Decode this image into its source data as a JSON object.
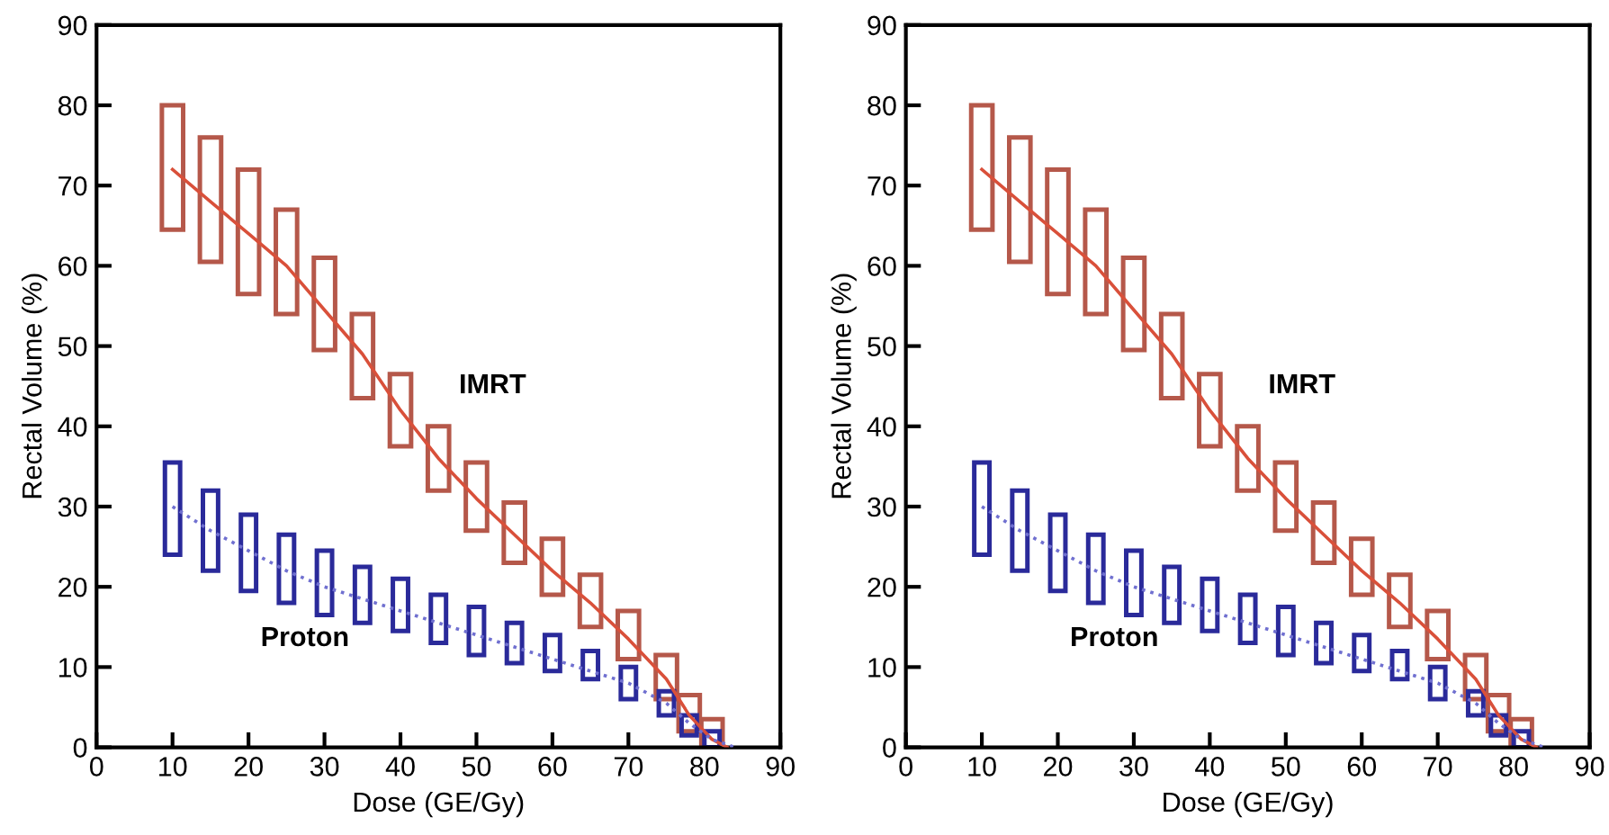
{
  "chart_data": [
    {
      "type": "bar",
      "xlabel": "Dose (GE/Gy)",
      "ylabel": "Rectal Volume (%)",
      "xlim": [
        0,
        90
      ],
      "ylim": [
        0,
        90
      ],
      "xticks": [
        0,
        10,
        20,
        30,
        40,
        50,
        60,
        70,
        80,
        90
      ],
      "yticks": [
        0,
        10,
        20,
        30,
        40,
        50,
        60,
        70,
        80,
        90
      ],
      "grid": false,
      "legend": false,
      "annotations": [
        "IMRT",
        "Proton"
      ],
      "series": [
        {
          "color": "#b5584a",
          "x": [
            10,
            15,
            20,
            25,
            30,
            35,
            40,
            45,
            50,
            55,
            60,
            65,
            70,
            75,
            78,
            81
          ],
          "base": [
            64.5,
            60.5,
            56.5,
            54,
            49.5,
            43.5,
            37.5,
            32,
            27,
            23,
            19,
            15,
            11,
            6,
            2,
            0
          ],
          "values": [
            15.5,
            15.5,
            15.5,
            13,
            11.5,
            10.5,
            9,
            8,
            8.5,
            7.5,
            7,
            6.5,
            6,
            5.5,
            4.5,
            3.5
          ]
        },
        {
          "color": "#2a2a9a",
          "x": [
            10,
            15,
            20,
            25,
            30,
            35,
            40,
            45,
            50,
            55,
            60,
            65,
            70,
            75,
            78,
            81
          ],
          "base": [
            24,
            22,
            19.5,
            18,
            16.5,
            15.5,
            14.5,
            13,
            11.5,
            10.5,
            9.5,
            8.5,
            6,
            4,
            1.5,
            0
          ],
          "values": [
            11.5,
            10,
            9.5,
            8.5,
            8,
            7,
            6.5,
            6,
            6,
            5,
            4.5,
            3.5,
            4,
            3,
            2.5,
            2
          ]
        },
        {
          "type": "line",
          "color": "#d9503a",
          "line_style": "solid",
          "x": [
            10,
            15,
            20,
            25,
            30,
            35,
            40,
            45,
            50,
            55,
            60,
            65,
            70,
            75,
            78,
            81,
            83
          ],
          "values": [
            72,
            68,
            64,
            60,
            54.5,
            49,
            42,
            36,
            31,
            26.5,
            22,
            18,
            13.5,
            8.5,
            4,
            1,
            0
          ]
        },
        {
          "type": "line",
          "color": "#7070d0",
          "line_style": "dotted",
          "x": [
            10,
            15,
            20,
            25,
            30,
            35,
            40,
            45,
            50,
            55,
            60,
            65,
            70,
            75,
            78,
            81,
            84
          ],
          "values": [
            30,
            27,
            24.5,
            22,
            20,
            18.5,
            17,
            15.5,
            14,
            12.5,
            11,
            9.5,
            8,
            5.5,
            3,
            1,
            0
          ]
        }
      ]
    },
    {
      "type": "bar",
      "xlabel": "Dose (GE/Gy)",
      "ylabel": "Rectal Volume (%)",
      "xlim": [
        0,
        90
      ],
      "ylim": [
        0,
        90
      ],
      "xticks": [
        0,
        10,
        20,
        30,
        40,
        50,
        60,
        70,
        80,
        90
      ],
      "yticks": [
        0,
        10,
        20,
        30,
        40,
        50,
        60,
        70,
        80,
        90
      ],
      "grid": false,
      "legend": false,
      "annotations": [
        "IMRT",
        "Proton"
      ],
      "series": [
        {
          "color": "#b5584a",
          "x": [
            10,
            15,
            20,
            25,
            30,
            35,
            40,
            45,
            50,
            55,
            60,
            65,
            70,
            75,
            78,
            81
          ],
          "base": [
            64.5,
            60.5,
            56.5,
            54,
            49.5,
            43.5,
            37.5,
            32,
            27,
            23,
            19,
            15,
            11,
            6,
            2,
            0
          ],
          "values": [
            15.5,
            15.5,
            15.5,
            13,
            11.5,
            10.5,
            9,
            8,
            8.5,
            7.5,
            7,
            6.5,
            6,
            5.5,
            4.5,
            3.5
          ]
        },
        {
          "color": "#2a2a9a",
          "x": [
            10,
            15,
            20,
            25,
            30,
            35,
            40,
            45,
            50,
            55,
            60,
            65,
            70,
            75,
            78,
            81
          ],
          "base": [
            24,
            22,
            19.5,
            18,
            16.5,
            15.5,
            14.5,
            13,
            11.5,
            10.5,
            9.5,
            8.5,
            6,
            4,
            1.5,
            0
          ],
          "values": [
            11.5,
            10,
            9.5,
            8.5,
            8,
            7,
            6.5,
            6,
            6,
            5,
            4.5,
            3.5,
            4,
            3,
            2.5,
            2
          ]
        },
        {
          "type": "line",
          "color": "#d9503a",
          "line_style": "solid",
          "x": [
            10,
            15,
            20,
            25,
            30,
            35,
            40,
            45,
            50,
            55,
            60,
            65,
            70,
            75,
            78,
            81,
            83
          ],
          "values": [
            72,
            68,
            64,
            60,
            54.5,
            49,
            42,
            36,
            31,
            26.5,
            22,
            18,
            13.5,
            8.5,
            4,
            1,
            0
          ]
        },
        {
          "type": "line",
          "color": "#7070d0",
          "line_style": "dotted",
          "x": [
            10,
            15,
            20,
            25,
            30,
            35,
            40,
            45,
            50,
            55,
            60,
            65,
            70,
            75,
            78,
            81,
            84
          ],
          "values": [
            30,
            27,
            24.5,
            22,
            20,
            18.5,
            17,
            15.5,
            14,
            12.5,
            11,
            9.5,
            8,
            5.5,
            3,
            1,
            0
          ]
        }
      ]
    }
  ]
}
